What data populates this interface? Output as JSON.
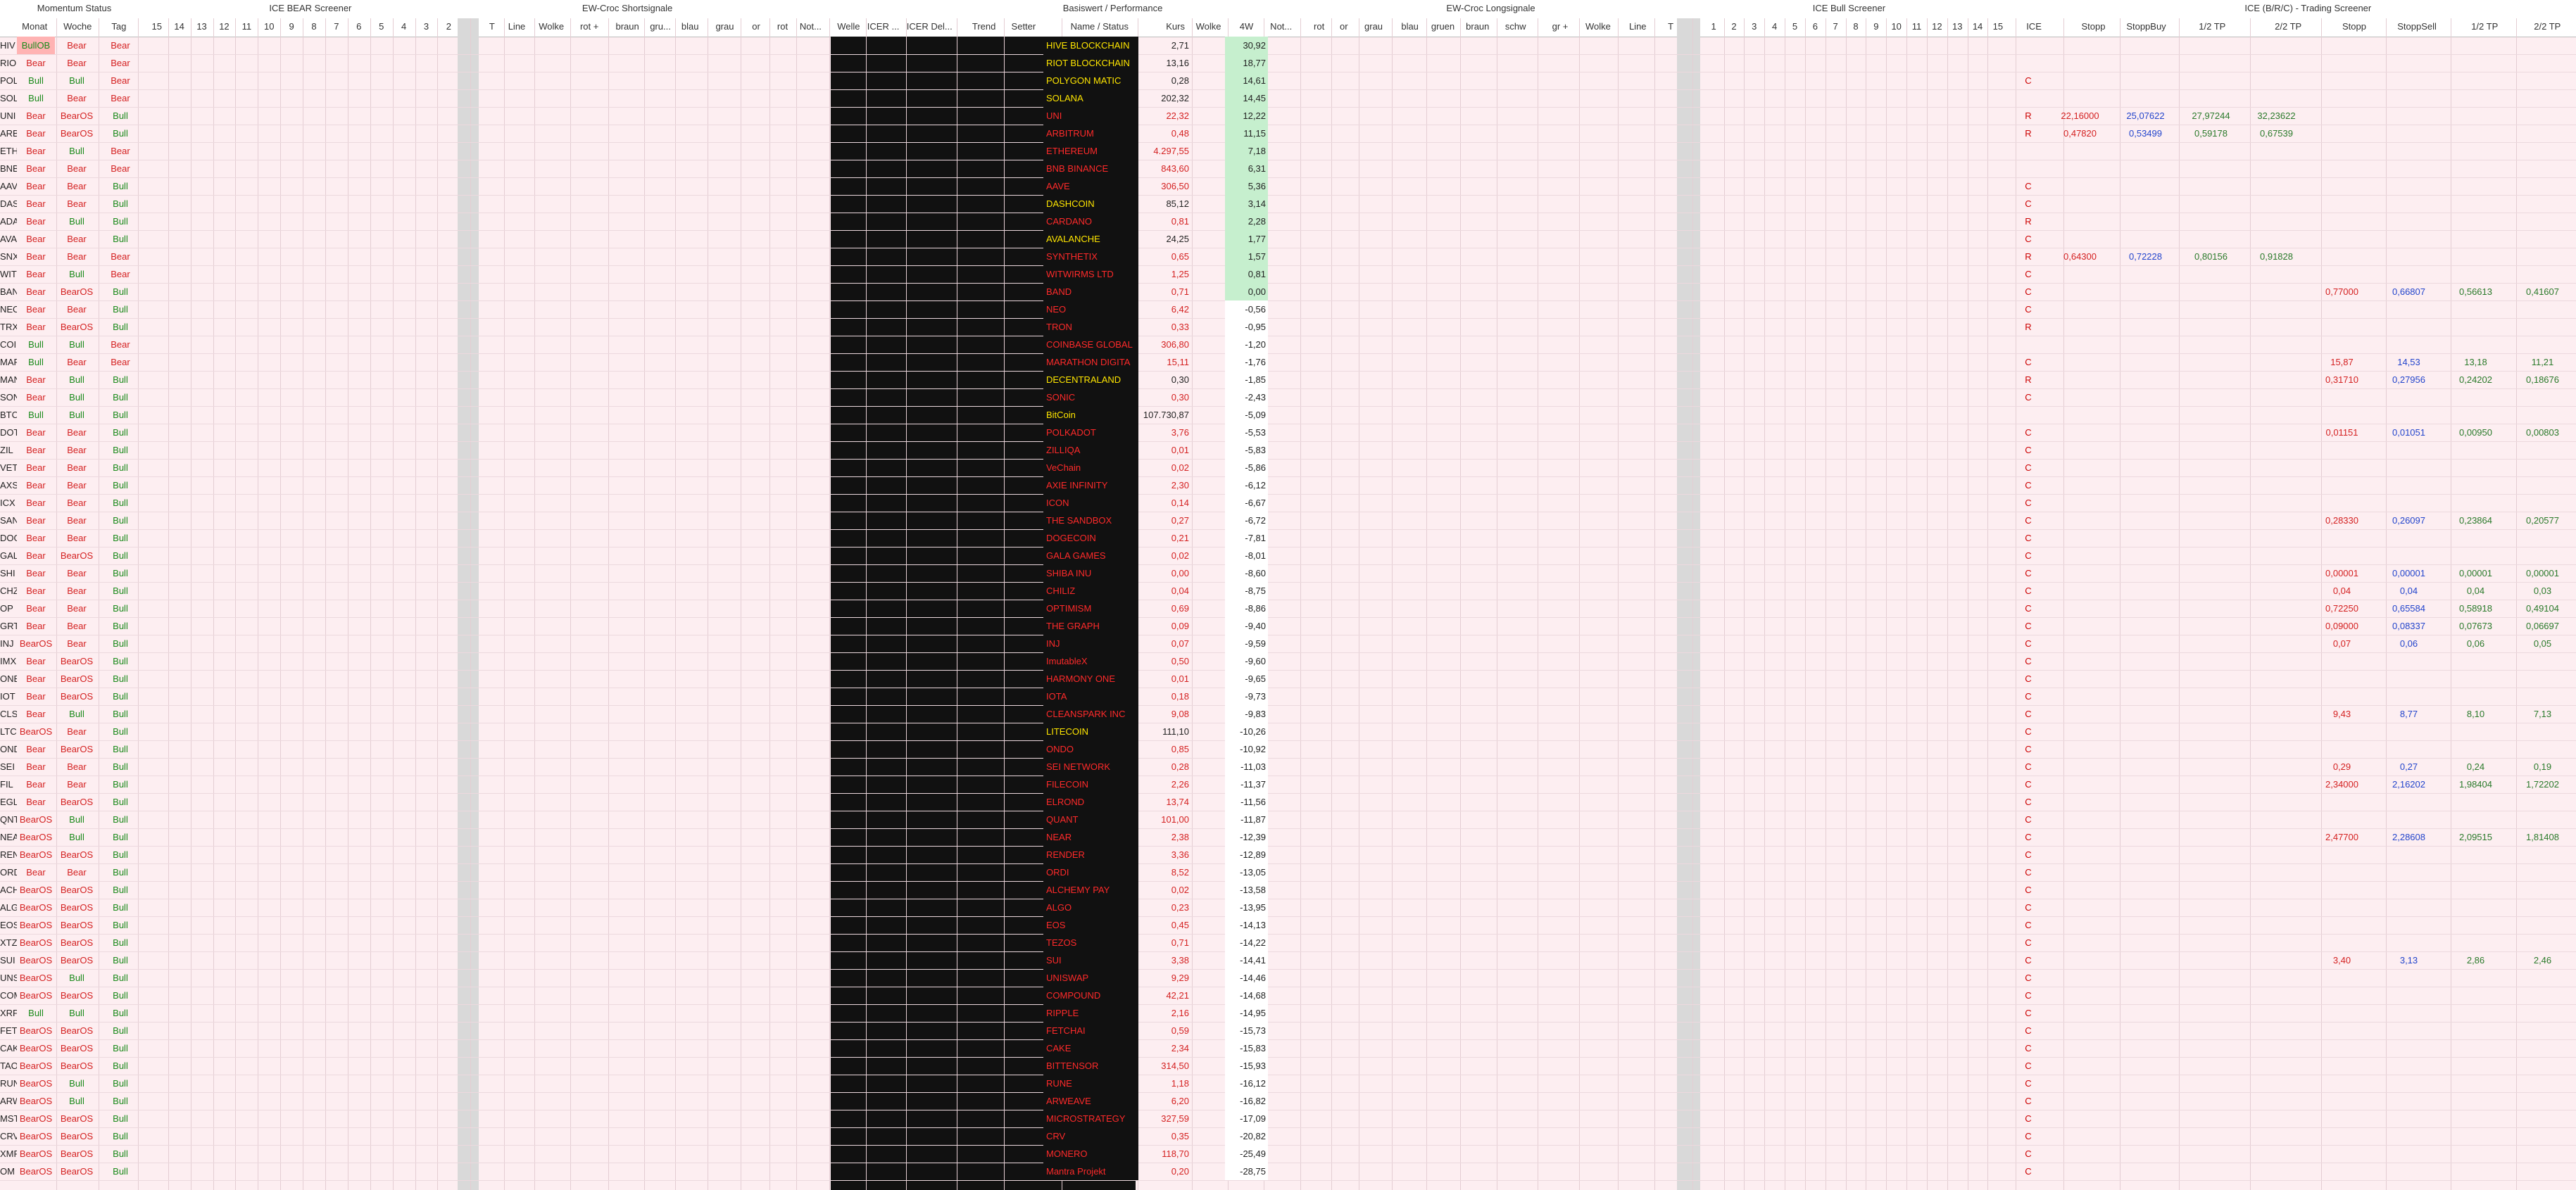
{
  "header": {
    "sections": [
      "Momentum Status",
      "ICE BEAR Screener",
      "EW-Croc Shortsignale",
      "Basiswert / Performance",
      "EW-Croc Longsignale",
      "ICE Bull Screener",
      "ICE (B/R/C) - Trading Screener"
    ],
    "columns": [
      "Monat",
      "Woche",
      "Tag",
      "15",
      "14",
      "13",
      "12",
      "11",
      "10",
      "9",
      "8",
      "7",
      "6",
      "5",
      "4",
      "3",
      "2",
      "T",
      "Line",
      "Wolke",
      "rot +",
      "braun",
      "gru...",
      "blau",
      "grau",
      "or",
      "rot",
      "Not...",
      "Welle",
      "ICER ...",
      "ICER Del...",
      "Trend",
      "Setter",
      "Name / Status",
      "Kurs",
      "Wolke",
      "4W",
      "Not...",
      "rot",
      "or",
      "grau",
      "blau",
      "gruen",
      "braun",
      "schw",
      "gr +",
      "Wolke",
      "Line",
      "T",
      "1",
      "2",
      "3",
      "4",
      "5",
      "6",
      "7",
      "8",
      "9",
      "10",
      "11",
      "12",
      "13",
      "14",
      "15",
      "ICE",
      "Stopp",
      "StoppBuy",
      "1/2 TP",
      "2/2 TP",
      "Stopp",
      "StoppSell",
      "1/2 TP",
      "2/2 TP"
    ]
  },
  "rows": [
    {
      "ticker": "HIV",
      "month": "BullOB",
      "week": "Bear",
      "day": "Bear",
      "name": "HIVE BLOCKCHAIN",
      "color": "yellow",
      "price": "2,71",
      "perf": "30,92"
    },
    {
      "ticker": "RIO",
      "month": "Bear",
      "week": "Bear",
      "day": "Bear",
      "name": "RIOT BLOCKCHAIN",
      "color": "yellow",
      "price": "13,16",
      "perf": "18,77"
    },
    {
      "ticker": "POL",
      "month": "Bull",
      "week": "Bull",
      "day": "Bear",
      "name": "POLYGON MATIC",
      "color": "yellow",
      "price": "0,28",
      "perf": "14,61",
      "ice": "C"
    },
    {
      "ticker": "SOL",
      "month": "Bull",
      "week": "Bear",
      "day": "Bear",
      "name": "SOLANA",
      "color": "yellow",
      "price": "202,32",
      "perf": "14,45"
    },
    {
      "ticker": "UNI",
      "month": "Bear",
      "week": "BearOS",
      "day": "Bull",
      "name": "UNI",
      "color": "red",
      "price": "22,32",
      "perf": "12,22",
      "ice": "R",
      "ice_tp": [
        "22,16000",
        "25,07622",
        "27,97244",
        "32,23622"
      ]
    },
    {
      "ticker": "ARB",
      "month": "Bear",
      "week": "BearOS",
      "day": "Bull",
      "name": "ARBITRUM",
      "color": "red",
      "price": "0,48",
      "perf": "11,15",
      "ice": "R",
      "ice_tp": [
        "0,47820",
        "0,53499",
        "0,59178",
        "0,67539"
      ]
    },
    {
      "ticker": "ETH",
      "month": "Bear",
      "week": "Bull",
      "day": "Bear",
      "name": "ETHEREUM",
      "color": "red",
      "price": "4.297,55",
      "perf": "7,18"
    },
    {
      "ticker": "BNB",
      "month": "Bear",
      "week": "Bear",
      "day": "Bear",
      "name": "BNB BINANCE",
      "color": "red",
      "price": "843,60",
      "perf": "6,31"
    },
    {
      "ticker": "AAV",
      "month": "Bear",
      "week": "Bear",
      "day": "Bull",
      "name": "AAVE",
      "color": "red",
      "price": "306,50",
      "perf": "5,36",
      "ice": "C"
    },
    {
      "ticker": "DAS",
      "month": "Bear",
      "week": "Bear",
      "day": "Bull",
      "name": "DASHCOIN",
      "color": "yellow",
      "price": "85,12",
      "perf": "3,14",
      "ice": "C"
    },
    {
      "ticker": "ADA",
      "month": "Bear",
      "week": "Bull",
      "day": "Bull",
      "name": "CARDANO",
      "color": "red",
      "price": "0,81",
      "perf": "2,28",
      "ice": "R"
    },
    {
      "ticker": "AVA",
      "month": "Bear",
      "week": "Bear",
      "day": "Bull",
      "name": "AVALANCHE",
      "color": "yellow",
      "price": "24,25",
      "perf": "1,77",
      "ice": "C"
    },
    {
      "ticker": "SNX",
      "month": "Bear",
      "week": "Bear",
      "day": "Bear",
      "name": "SYNTHETIX",
      "color": "red",
      "price": "0,65",
      "perf": "1,57",
      "ice": "R",
      "ice_tp": [
        "0,64300",
        "0,72228",
        "0,80156",
        "0,91828"
      ]
    },
    {
      "ticker": "WIT",
      "month": "Bear",
      "week": "Bull",
      "day": "Bear",
      "name": "WITWIRMS LTD",
      "color": "red",
      "price": "1,25",
      "perf": "0,81",
      "ice": "C"
    },
    {
      "ticker": "BAN",
      "month": "Bear",
      "week": "BearOS",
      "day": "Bull",
      "name": "BAND",
      "color": "red",
      "price": "0,71",
      "perf": "0,00",
      "ice": "C",
      "screener": [
        "0,77000",
        "0,66807",
        "0,56613",
        "0,41607"
      ]
    },
    {
      "ticker": "NEO",
      "month": "Bear",
      "week": "Bear",
      "day": "Bull",
      "name": "NEO",
      "color": "red",
      "price": "6,42",
      "perf": "-0,56",
      "ice": "C"
    },
    {
      "ticker": "TRX",
      "month": "Bear",
      "week": "BearOS",
      "day": "Bull",
      "name": "TRON",
      "color": "red",
      "price": "0,33",
      "perf": "-0,95",
      "ice": "R"
    },
    {
      "ticker": "COI",
      "month": "Bull",
      "week": "Bull",
      "day": "Bear",
      "name": "COINBASE GLOBAL",
      "color": "red",
      "price": "306,80",
      "perf": "-1,20"
    },
    {
      "ticker": "MAR",
      "month": "Bull",
      "week": "Bear",
      "day": "Bear",
      "name": "MARATHON DIGITA",
      "color": "red",
      "price": "15,11",
      "perf": "-1,76",
      "ice": "C",
      "screener": [
        "15,87",
        "14,53",
        "13,18",
        "11,21"
      ]
    },
    {
      "ticker": "MAN",
      "month": "Bear",
      "week": "Bull",
      "day": "Bull",
      "name": "DECENTRALAND",
      "color": "yellow",
      "price": "0,30",
      "perf": "-1,85",
      "ice": "R",
      "screener": [
        "0,31710",
        "0,27956",
        "0,24202",
        "0,18676"
      ]
    },
    {
      "ticker": "SON",
      "month": "Bear",
      "week": "Bull",
      "day": "Bull",
      "name": "SONIC",
      "color": "red",
      "price": "0,30",
      "perf": "-2,43",
      "ice": "C"
    },
    {
      "ticker": "BTC",
      "month": "Bull",
      "week": "Bull",
      "day": "Bull",
      "name": "BitCoin",
      "color": "yellow",
      "price": "107.730,87",
      "perf": "-5,09"
    },
    {
      "ticker": "DOT",
      "month": "Bear",
      "week": "Bear",
      "day": "Bull",
      "name": "POLKADOT",
      "color": "red",
      "price": "3,76",
      "perf": "-5,53",
      "ice": "C",
      "screener": [
        "0,01151",
        "0,01051",
        "0,00950",
        "0,00803"
      ]
    },
    {
      "ticker": "ZIL",
      "month": "Bear",
      "week": "Bear",
      "day": "Bull",
      "name": "ZILLIQA",
      "color": "red",
      "price": "0,01",
      "perf": "-5,83",
      "ice": "C"
    },
    {
      "ticker": "VET",
      "month": "Bear",
      "week": "Bear",
      "day": "Bull",
      "name": "VeChain",
      "color": "red",
      "price": "0,02",
      "perf": "-5,86",
      "ice": "C"
    },
    {
      "ticker": "AXS",
      "month": "Bear",
      "week": "Bear",
      "day": "Bull",
      "name": "AXIE INFINITY",
      "color": "red",
      "price": "2,30",
      "perf": "-6,12",
      "ice": "C"
    },
    {
      "ticker": "ICX",
      "month": "Bear",
      "week": "Bear",
      "day": "Bull",
      "name": "ICON",
      "color": "red",
      "price": "0,14",
      "perf": "-6,67",
      "ice": "C"
    },
    {
      "ticker": "SAN",
      "month": "Bear",
      "week": "Bear",
      "day": "Bull",
      "name": "THE SANDBOX",
      "color": "red",
      "price": "0,27",
      "perf": "-6,72",
      "ice": "C",
      "screener": [
        "0,28330",
        "0,26097",
        "0,23864",
        "0,20577"
      ]
    },
    {
      "ticker": "DOG",
      "month": "Bear",
      "week": "Bear",
      "day": "Bull",
      "name": "DOGECOIN",
      "color": "red",
      "price": "0,21",
      "perf": "-7,81",
      "ice": "C"
    },
    {
      "ticker": "GAL",
      "month": "Bear",
      "week": "BearOS",
      "day": "Bull",
      "name": "GALA GAMES",
      "color": "red",
      "price": "0,02",
      "perf": "-8,01",
      "ice": "C"
    },
    {
      "ticker": "SHI",
      "month": "Bear",
      "week": "Bear",
      "day": "Bull",
      "name": "SHIBA INU",
      "color": "red",
      "price": "0,00",
      "perf": "-8,60",
      "ice": "C",
      "screener": [
        "0,00001",
        "0,00001",
        "0,00001",
        "0,00001"
      ]
    },
    {
      "ticker": "CHZ",
      "month": "Bear",
      "week": "Bear",
      "day": "Bull",
      "name": "CHILIZ",
      "color": "red",
      "price": "0,04",
      "perf": "-8,75",
      "ice": "C",
      "screener": [
        "0,04",
        "0,04",
        "0,04",
        "0,03"
      ]
    },
    {
      "ticker": "OP",
      "month": "Bear",
      "week": "Bear",
      "day": "Bull",
      "name": "OPTIMISM",
      "color": "red",
      "price": "0,69",
      "perf": "-8,86",
      "ice": "C",
      "screener": [
        "0,72250",
        "0,65584",
        "0,58918",
        "0,49104"
      ]
    },
    {
      "ticker": "GRT",
      "month": "Bear",
      "week": "Bear",
      "day": "Bull",
      "name": "THE GRAPH",
      "color": "red",
      "price": "0,09",
      "perf": "-9,40",
      "ice": "C",
      "screener": [
        "0,09000",
        "0,08337",
        "0,07673",
        "0,06697"
      ]
    },
    {
      "ticker": "INJ",
      "month": "BearOS",
      "week": "Bear",
      "day": "Bull",
      "name": "INJ",
      "color": "red",
      "price": "0,07",
      "perf": "-9,59",
      "ice": "C",
      "screener": [
        "0,07",
        "0,06",
        "0,06",
        "0,05"
      ]
    },
    {
      "ticker": "IMX",
      "month": "Bear",
      "week": "BearOS",
      "day": "Bull",
      "name": "ImutableX",
      "color": "red",
      "price": "0,50",
      "perf": "-9,60",
      "ice": "C"
    },
    {
      "ticker": "ONE",
      "month": "Bear",
      "week": "BearOS",
      "day": "Bull",
      "name": "HARMONY ONE",
      "color": "red",
      "price": "0,01",
      "perf": "-9,65",
      "ice": "C"
    },
    {
      "ticker": "IOT",
      "month": "Bear",
      "week": "BearOS",
      "day": "Bull",
      "name": "IOTA",
      "color": "red",
      "price": "0,18",
      "perf": "-9,73",
      "ice": "C"
    },
    {
      "ticker": "CLS",
      "month": "Bear",
      "week": "Bull",
      "day": "Bull",
      "name": "CLEANSPARK INC",
      "color": "red",
      "price": "9,08",
      "perf": "-9,83",
      "ice": "C",
      "screener": [
        "9,43",
        "8,77",
        "8,10",
        "7,13"
      ]
    },
    {
      "ticker": "LTC",
      "month": "BearOS",
      "week": "Bear",
      "day": "Bull",
      "name": "LITECOIN",
      "color": "yellow",
      "price": "111,10",
      "perf": "-10,26",
      "ice": "C"
    },
    {
      "ticker": "OND",
      "month": "Bear",
      "week": "BearOS",
      "day": "Bull",
      "name": "ONDO",
      "color": "red",
      "price": "0,85",
      "perf": "-10,92",
      "ice": "C"
    },
    {
      "ticker": "SEI",
      "month": "Bear",
      "week": "Bear",
      "day": "Bull",
      "name": "SEI NETWORK",
      "color": "red",
      "price": "0,28",
      "perf": "-11,03",
      "ice": "C",
      "screener": [
        "0,29",
        "0,27",
        "0,24",
        "0,19"
      ]
    },
    {
      "ticker": "FIL",
      "month": "Bear",
      "week": "Bear",
      "day": "Bull",
      "name": "FILECOIN",
      "color": "red",
      "price": "2,26",
      "perf": "-11,37",
      "ice": "C",
      "screener": [
        "2,34000",
        "2,16202",
        "1,98404",
        "1,72202"
      ]
    },
    {
      "ticker": "EGL",
      "month": "Bear",
      "week": "BearOS",
      "day": "Bull",
      "name": "ELROND",
      "color": "red",
      "price": "13,74",
      "perf": "-11,56",
      "ice": "C"
    },
    {
      "ticker": "QNT",
      "month": "BearOS",
      "week": "Bull",
      "day": "Bull",
      "name": "QUANT",
      "color": "red",
      "price": "101,00",
      "perf": "-11,87",
      "ice": "C"
    },
    {
      "ticker": "NEA",
      "month": "BearOS",
      "week": "Bull",
      "day": "Bull",
      "name": "NEAR",
      "color": "red",
      "price": "2,38",
      "perf": "-12,39",
      "ice": "C",
      "screener": [
        "2,47700",
        "2,28608",
        "2,09515",
        "1,81408"
      ]
    },
    {
      "ticker": "REN",
      "month": "BearOS",
      "week": "BearOS",
      "day": "Bull",
      "name": "RENDER",
      "color": "red",
      "price": "3,36",
      "perf": "-12,89",
      "ice": "C"
    },
    {
      "ticker": "ORD",
      "month": "Bear",
      "week": "Bear",
      "day": "Bull",
      "name": "ORDI",
      "color": "red",
      "price": "8,52",
      "perf": "-13,05",
      "ice": "C"
    },
    {
      "ticker": "ACH",
      "month": "BearOS",
      "week": "BearOS",
      "day": "Bull",
      "name": "ALCHEMY PAY",
      "color": "red",
      "price": "0,02",
      "perf": "-13,58",
      "ice": "C"
    },
    {
      "ticker": "ALG",
      "month": "BearOS",
      "week": "BearOS",
      "day": "Bull",
      "name": "ALGO",
      "color": "red",
      "price": "0,23",
      "perf": "-13,95",
      "ice": "C"
    },
    {
      "ticker": "EOS",
      "month": "BearOS",
      "week": "BearOS",
      "day": "Bull",
      "name": "EOS",
      "color": "red",
      "price": "0,45",
      "perf": "-14,13",
      "ice": "C"
    },
    {
      "ticker": "XTZ",
      "month": "BearOS",
      "week": "BearOS",
      "day": "Bull",
      "name": "TEZOS",
      "color": "red",
      "price": "0,71",
      "perf": "-14,22",
      "ice": "C"
    },
    {
      "ticker": "SUI",
      "month": "BearOS",
      "week": "BearOS",
      "day": "Bull",
      "name": "SUI",
      "color": "red",
      "price": "3,38",
      "perf": "-14,41",
      "ice": "C",
      "screener": [
        "3,40",
        "3,13",
        "2,86",
        "2,46"
      ]
    },
    {
      "ticker": "UNS",
      "month": "BearOS",
      "week": "Bull",
      "day": "Bull",
      "name": "UNISWAP",
      "color": "red",
      "price": "9,29",
      "perf": "-14,46",
      "ice": "C"
    },
    {
      "ticker": "COM",
      "month": "BearOS",
      "week": "BearOS",
      "day": "Bull",
      "name": "COMPOUND",
      "color": "red",
      "price": "42,21",
      "perf": "-14,68",
      "ice": "C"
    },
    {
      "ticker": "XRP",
      "month": "Bull",
      "week": "Bull",
      "day": "Bull",
      "name": "RIPPLE",
      "color": "red",
      "price": "2,16",
      "perf": "-14,95",
      "ice": "C"
    },
    {
      "ticker": "FET",
      "month": "BearOS",
      "week": "BearOS",
      "day": "Bull",
      "name": "FETCHAI",
      "color": "red",
      "price": "0,59",
      "perf": "-15,73",
      "ice": "C"
    },
    {
      "ticker": "CAK",
      "month": "BearOS",
      "week": "BearOS",
      "day": "Bull",
      "name": "CAKE",
      "color": "red",
      "price": "2,34",
      "perf": "-15,83",
      "ice": "C"
    },
    {
      "ticker": "TAO",
      "month": "BearOS",
      "week": "BearOS",
      "day": "Bull",
      "name": "BITTENSOR",
      "color": "red",
      "price": "314,50",
      "perf": "-15,93",
      "ice": "C"
    },
    {
      "ticker": "RUN",
      "month": "BearOS",
      "week": "Bull",
      "day": "Bull",
      "name": "RUNE",
      "color": "red",
      "price": "1,18",
      "perf": "-16,12",
      "ice": "C"
    },
    {
      "ticker": "ARW",
      "month": "BearOS",
      "week": "Bull",
      "day": "Bull",
      "name": "ARWEAVE",
      "color": "red",
      "price": "6,20",
      "perf": "-16,82",
      "ice": "C"
    },
    {
      "ticker": "MST",
      "month": "BearOS",
      "week": "BearOS",
      "day": "Bull",
      "name": "MICROSTRATEGY",
      "color": "red",
      "price": "327,59",
      "perf": "-17,09",
      "ice": "C"
    },
    {
      "ticker": "CRV",
      "month": "BearOS",
      "week": "BearOS",
      "day": "Bull",
      "name": "CRV",
      "color": "red",
      "price": "0,35",
      "perf": "-20,82",
      "ice": "C"
    },
    {
      "ticker": "XMR",
      "month": "BearOS",
      "week": "BearOS",
      "day": "Bull",
      "name": "MONERO",
      "color": "red",
      "price": "118,70",
      "perf": "-25,49",
      "ice": "C"
    },
    {
      "ticker": "OM",
      "month": "BearOS",
      "week": "BearOS",
      "day": "Bull",
      "name": "Mantra Projekt",
      "color": "red",
      "price": "0,20",
      "perf": "-28,75",
      "ice": "C"
    }
  ]
}
